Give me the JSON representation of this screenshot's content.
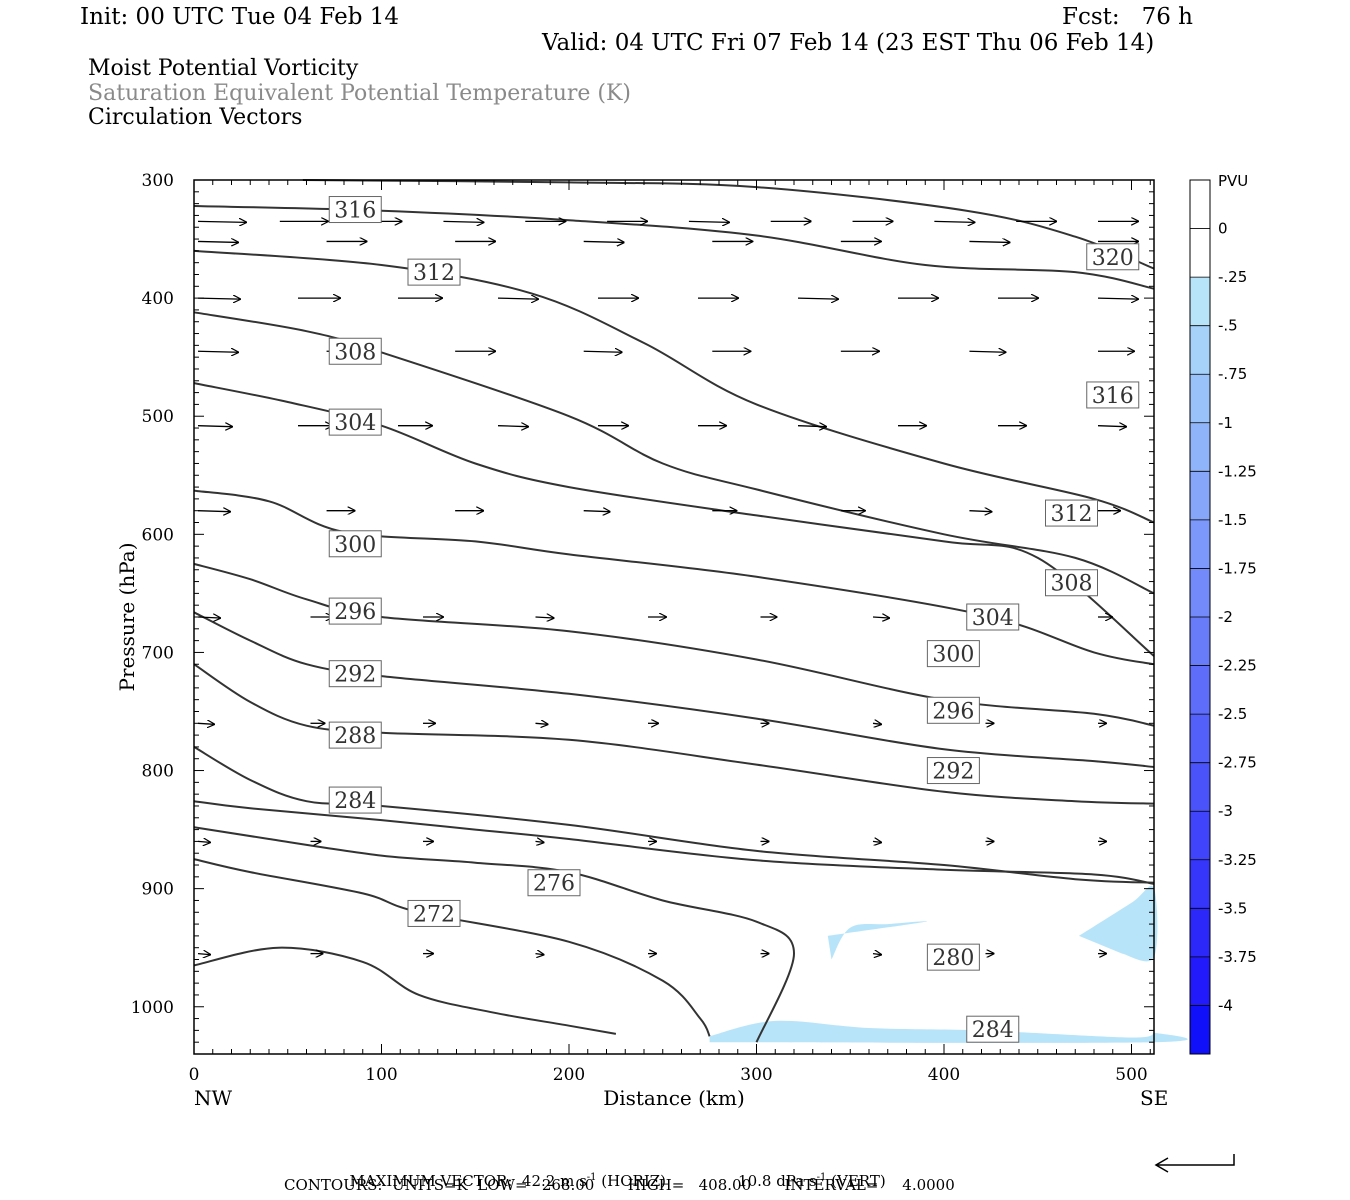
{
  "header": {
    "init": "Init: 00 UTC Tue 04 Feb 14",
    "fcst": "Fcst:   76 h",
    "valid": "Valid: 04 UTC Fri 07 Feb 14 (23 EST Thu 06 Feb 14)",
    "fields": [
      {
        "label": "Moist Potential Vorticity",
        "color": "#000000"
      },
      {
        "label": "Saturation Equivalent Potential Temperature (K)",
        "color": "#8a8a8a"
      },
      {
        "label": "Circulation Vectors",
        "color": "#000000"
      }
    ]
  },
  "footer": {
    "line1_a": "MAXIMUM VECTOR:  42.2 m s",
    "line1_b": "-1",
    "line1_c": " (HORIZ)",
    "line1_d": "10.8 dPa s",
    "line1_e": "-1",
    "line1_f": " (VERT)",
    "line2": "CONTOURS:  UNITS=K  LOW=   268.00       HIGH=   408.00       INTERVAL=     4.0000"
  },
  "chart_data": {
    "type": "cross-section",
    "xlabel": "Distance (km)",
    "ylabel": "Pressure (hPa)",
    "xlim": [
      0,
      512
    ],
    "ylim": [
      1040,
      300
    ],
    "x_ticks": [
      0,
      100,
      200,
      300,
      400,
      500
    ],
    "y_ticks": [
      300,
      400,
      500,
      600,
      700,
      800,
      900,
      1000
    ],
    "x_end_labels": {
      "left": "NW",
      "right": "SE"
    },
    "colorbar": {
      "unit": "PVU",
      "levels": [
        "0",
        "-.25",
        "-.5",
        "-.75",
        "-1",
        "-1.25",
        "-1.5",
        "-1.75",
        "-2",
        "-2.25",
        "-2.5",
        "-2.75",
        "-3",
        "-3.25",
        "-3.5",
        "-3.75",
        "-4"
      ],
      "colors": [
        "#ffffff",
        "#ffffff",
        "#b8e4fa",
        "#a6d2fa",
        "#9ac2fa",
        "#90b4fa",
        "#86a6fa",
        "#7c98fa",
        "#728afa",
        "#687cfa",
        "#5e6efa",
        "#5460fa",
        "#4a52fa",
        "#4044fa",
        "#3636fa",
        "#2c28fa",
        "#221afa",
        "#1010fa"
      ]
    },
    "theta_e_contours": [
      {
        "level": 320,
        "label": "320",
        "points": [
          [
            58,
            300
          ],
          [
            200,
            302
          ],
          [
            300,
            306
          ],
          [
            412,
            326
          ],
          [
            470,
            348
          ],
          [
            512,
            375
          ]
        ]
      },
      {
        "level": 316,
        "label": "316",
        "points": [
          [
            0,
            322
          ],
          [
            100,
            326
          ],
          [
            200,
            334
          ],
          [
            300,
            347
          ],
          [
            390,
            372
          ],
          [
            470,
            378
          ],
          [
            512,
            392
          ]
        ]
      },
      {
        "level": 312,
        "label": "312",
        "points": [
          [
            0,
            360
          ],
          [
            100,
            372
          ],
          [
            180,
            396
          ],
          [
            240,
            438
          ],
          [
            300,
            490
          ],
          [
            400,
            540
          ],
          [
            480,
            570
          ],
          [
            512,
            590
          ]
        ]
      },
      {
        "level": 308,
        "label": "308",
        "points": [
          [
            0,
            412
          ],
          [
            60,
            428
          ],
          [
            100,
            446
          ],
          [
            200,
            500
          ],
          [
            250,
            540
          ],
          [
            300,
            562
          ],
          [
            400,
            600
          ],
          [
            470,
            620
          ],
          [
            512,
            650
          ]
        ]
      },
      {
        "level": 304,
        "label": "304",
        "points": [
          [
            0,
            472
          ],
          [
            50,
            488
          ],
          [
            100,
            508
          ],
          [
            150,
            540
          ],
          [
            200,
            560
          ],
          [
            300,
            584
          ],
          [
            400,
            606
          ],
          [
            450,
            620
          ],
          [
            512,
            703
          ]
        ]
      },
      {
        "level": 300,
        "label": "300",
        "points": [
          [
            0,
            563
          ],
          [
            40,
            572
          ],
          [
            80,
            598
          ],
          [
            150,
            606
          ],
          [
            200,
            617
          ],
          [
            300,
            636
          ],
          [
            420,
            668
          ],
          [
            480,
            700
          ],
          [
            512,
            710
          ]
        ]
      },
      {
        "level": 296,
        "label": "296",
        "points": [
          [
            0,
            625
          ],
          [
            30,
            638
          ],
          [
            60,
            655
          ],
          [
            100,
            670
          ],
          [
            200,
            682
          ],
          [
            300,
            706
          ],
          [
            400,
            740
          ],
          [
            480,
            752
          ],
          [
            512,
            762
          ]
        ]
      },
      {
        "level": 292,
        "label": "292",
        "points": [
          [
            0,
            666
          ],
          [
            30,
            690
          ],
          [
            60,
            710
          ],
          [
            100,
            720
          ],
          [
            200,
            735
          ],
          [
            300,
            756
          ],
          [
            400,
            782
          ],
          [
            480,
            792
          ],
          [
            512,
            797
          ]
        ]
      },
      {
        "level": 288,
        "label": "288",
        "points": [
          [
            0,
            710
          ],
          [
            30,
            742
          ],
          [
            60,
            762
          ],
          [
            100,
            768
          ],
          [
            200,
            774
          ],
          [
            300,
            795
          ],
          [
            400,
            818
          ],
          [
            470,
            826
          ],
          [
            512,
            828
          ]
        ]
      },
      {
        "level": 284,
        "label": "284",
        "points": [
          [
            0,
            780
          ],
          [
            30,
            808
          ],
          [
            60,
            826
          ],
          [
            100,
            830
          ],
          [
            200,
            846
          ],
          [
            300,
            868
          ],
          [
            400,
            880
          ],
          [
            470,
            892
          ],
          [
            512,
            895
          ]
        ]
      },
      {
        "level": 280,
        "label": "280",
        "points": [
          [
            0,
            826
          ],
          [
            30,
            832
          ],
          [
            100,
            842
          ],
          [
            150,
            850
          ],
          [
            200,
            858
          ],
          [
            300,
            876
          ],
          [
            400,
            884
          ],
          [
            480,
            888
          ],
          [
            512,
            896
          ]
        ]
      },
      {
        "level": 276,
        "label": "276",
        "points": [
          [
            0,
            848
          ],
          [
            40,
            858
          ],
          [
            100,
            872
          ],
          [
            150,
            878
          ],
          [
            200,
            886
          ],
          [
            250,
            910
          ],
          [
            300,
            928
          ],
          [
            320,
            955
          ],
          [
            300,
            1030
          ]
        ]
      },
      {
        "level": 272,
        "label": "272",
        "points": [
          [
            0,
            875
          ],
          [
            30,
            886
          ],
          [
            90,
            904
          ],
          [
            120,
            920
          ],
          [
            200,
            945
          ],
          [
            250,
            978
          ],
          [
            270,
            1010
          ],
          [
            275,
            1025
          ]
        ]
      },
      {
        "level": 268,
        "label": "",
        "points": [
          [
            0,
            965
          ],
          [
            45,
            950
          ],
          [
            90,
            962
          ],
          [
            120,
            990
          ],
          [
            160,
            1005
          ],
          [
            200,
            1016
          ],
          [
            225,
            1023
          ]
        ]
      }
    ],
    "label_positions": [
      {
        "label": "316",
        "x": 86,
        "p": 325
      },
      {
        "label": "312",
        "x": 128,
        "p": 378
      },
      {
        "label": "308",
        "x": 86,
        "p": 445
      },
      {
        "label": "304",
        "x": 86,
        "p": 505
      },
      {
        "label": "300",
        "x": 86,
        "p": 608
      },
      {
        "label": "296",
        "x": 86,
        "p": 665
      },
      {
        "label": "292",
        "x": 86,
        "p": 718
      },
      {
        "label": "288",
        "x": 86,
        "p": 770
      },
      {
        "label": "284",
        "x": 86,
        "p": 825
      },
      {
        "label": "276",
        "x": 192,
        "p": 895
      },
      {
        "label": "272",
        "x": 128,
        "p": 921
      },
      {
        "label": "320",
        "x": 490,
        "p": 365
      },
      {
        "label": "316",
        "x": 490,
        "p": 482
      },
      {
        "label": "312",
        "x": 468,
        "p": 582
      },
      {
        "label": "308",
        "x": 468,
        "p": 641
      },
      {
        "label": "304",
        "x": 426,
        "p": 670
      },
      {
        "label": "300",
        "x": 405,
        "p": 701
      },
      {
        "label": "296",
        "x": 405,
        "p": 749
      },
      {
        "label": "292",
        "x": 405,
        "p": 800
      },
      {
        "label": "280",
        "x": 405,
        "p": 958
      },
      {
        "label": "284",
        "x": 426,
        "p": 1019
      }
    ],
    "mpv_regions": [
      {
        "pvu_max": -0.25,
        "points": [
          [
            338,
            940
          ],
          [
            390,
            928
          ],
          [
            370,
            930
          ],
          [
            350,
            933
          ],
          [
            340,
            960
          ]
        ]
      },
      {
        "pvu_max": -0.25,
        "points": [
          [
            472,
            940
          ],
          [
            500,
            912
          ],
          [
            512,
            900
          ],
          [
            512,
            958
          ],
          [
            495,
            955
          ]
        ]
      },
      {
        "pvu_max": -0.25,
        "points": [
          [
            275,
            1025
          ],
          [
            310,
            1012
          ],
          [
            360,
            1018
          ],
          [
            420,
            1020
          ],
          [
            500,
            1026
          ],
          [
            512,
            1022
          ],
          [
            512,
            1030
          ],
          [
            275,
            1030
          ]
        ]
      }
    ],
    "vector_rows": [
      {
        "p": 335,
        "dx": [
          48,
          48,
          40,
          40,
          40,
          40,
          40,
          40,
          40,
          40,
          40,
          40
        ]
      },
      {
        "p": 352,
        "dx": [
          40,
          40,
          40,
          40,
          40,
          40,
          40,
          40
        ]
      },
      {
        "p": 400,
        "dx": [
          42,
          42,
          44,
          40,
          40,
          40,
          40,
          40,
          40,
          40
        ]
      },
      {
        "p": 445,
        "dx": [
          40,
          40,
          40,
          38,
          38,
          38,
          36,
          36
        ]
      },
      {
        "p": 508,
        "dx": [
          34,
          34,
          34,
          30,
          30,
          28,
          28,
          28,
          28,
          28
        ]
      },
      {
        "p": 580,
        "dx": [
          32,
          28,
          28,
          26,
          24,
          24,
          22,
          22
        ]
      },
      {
        "p": 670,
        "dx": [
          22,
          22,
          20,
          18,
          18,
          16,
          16,
          14,
          14
        ]
      },
      {
        "p": 760,
        "dx": [
          16,
          14,
          12,
          12,
          10,
          8,
          8,
          8,
          8
        ]
      },
      {
        "p": 860,
        "dx": [
          12,
          10,
          10,
          8,
          8,
          8,
          8,
          8,
          8
        ]
      },
      {
        "p": 955,
        "dx": [
          12,
          12,
          10,
          8,
          8,
          8,
          8,
          8,
          8
        ]
      }
    ]
  }
}
